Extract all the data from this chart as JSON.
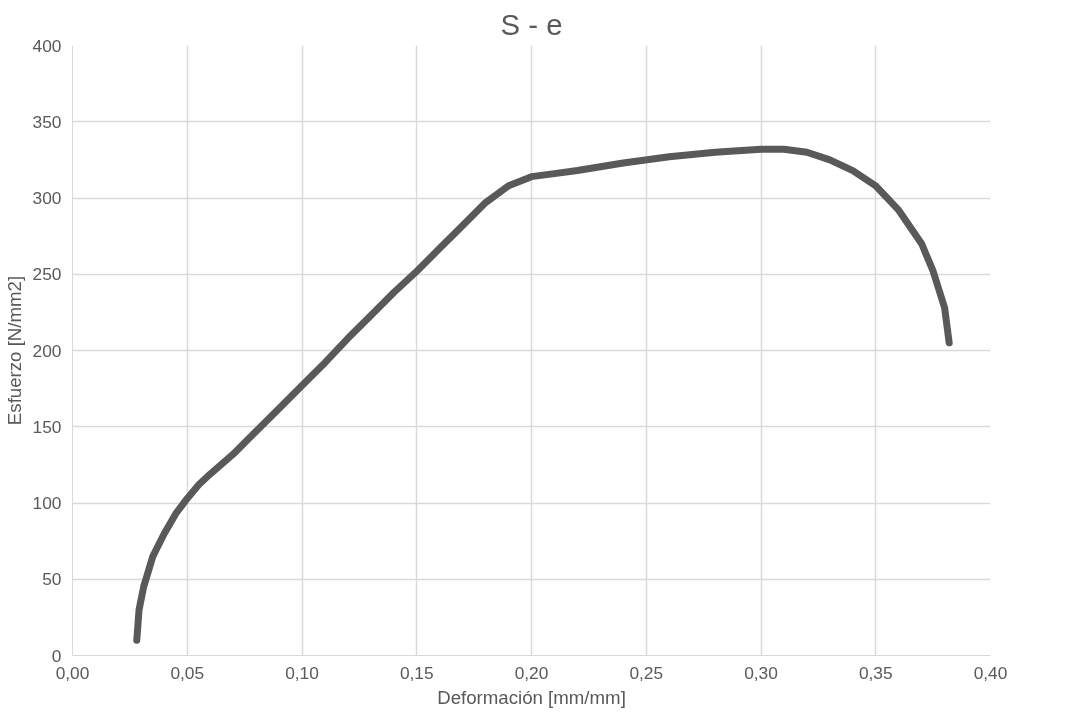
{
  "chart_data": {
    "type": "line",
    "title": "S - e",
    "xlabel": "Deformación [mm/mm]",
    "ylabel": "Esfuerzo [N/mm2]",
    "xlim": [
      0,
      0.4
    ],
    "ylim": [
      0,
      400
    ],
    "xticks": [
      {
        "value": 0,
        "label": "0,00"
      },
      {
        "value": 0.05,
        "label": "0,05"
      },
      {
        "value": 0.1,
        "label": "0,10"
      },
      {
        "value": 0.15,
        "label": "0,15"
      },
      {
        "value": 0.2,
        "label": "0,20"
      },
      {
        "value": 0.25,
        "label": "0,25"
      },
      {
        "value": 0.3,
        "label": "0,30"
      },
      {
        "value": 0.35,
        "label": "0,35"
      },
      {
        "value": 0.4,
        "label": "0,40"
      }
    ],
    "yticks": [
      0,
      50,
      100,
      150,
      200,
      250,
      300,
      350,
      400
    ],
    "grid": true,
    "marker": "none",
    "line_style": "solid",
    "series": [
      {
        "color": "#595959",
        "x": [
          0.028,
          0.029,
          0.031,
          0.035,
          0.04,
          0.045,
          0.05,
          0.055,
          0.06,
          0.07,
          0.08,
          0.09,
          0.1,
          0.11,
          0.12,
          0.13,
          0.14,
          0.15,
          0.16,
          0.17,
          0.18,
          0.19,
          0.2,
          0.21,
          0.22,
          0.24,
          0.26,
          0.28,
          0.3,
          0.31,
          0.32,
          0.33,
          0.34,
          0.35,
          0.36,
          0.37,
          0.375,
          0.38,
          0.382
        ],
        "values": [
          10,
          30,
          45,
          65,
          80,
          93,
          103,
          112,
          119,
          132,
          147,
          162,
          177,
          192,
          208,
          223,
          238,
          252,
          267,
          282,
          297,
          308,
          314,
          316,
          318,
          323,
          327,
          330,
          332,
          332,
          330,
          325,
          318,
          308,
          292,
          270,
          252,
          228,
          205
        ]
      }
    ]
  }
}
